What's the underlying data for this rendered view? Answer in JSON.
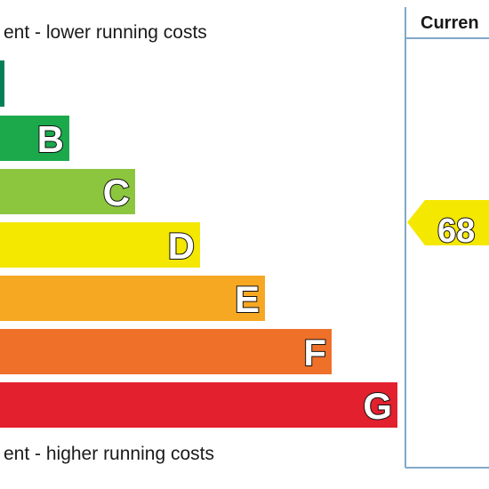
{
  "header": {
    "top_note": "ent - lower running costs",
    "bottom_note": "ent - higher running costs",
    "column_title": "Curren"
  },
  "bands": [
    {
      "letter": "B",
      "color": "#1ba94c"
    },
    {
      "letter": "C",
      "color": "#8cc63f"
    },
    {
      "letter": "D",
      "color": "#f4e700"
    },
    {
      "letter": "E",
      "color": "#f7a823"
    },
    {
      "letter": "F",
      "color": "#ee7029"
    },
    {
      "letter": "G",
      "color": "#e2202e"
    }
  ],
  "current": {
    "value": 68,
    "color": "#f4e700"
  }
}
